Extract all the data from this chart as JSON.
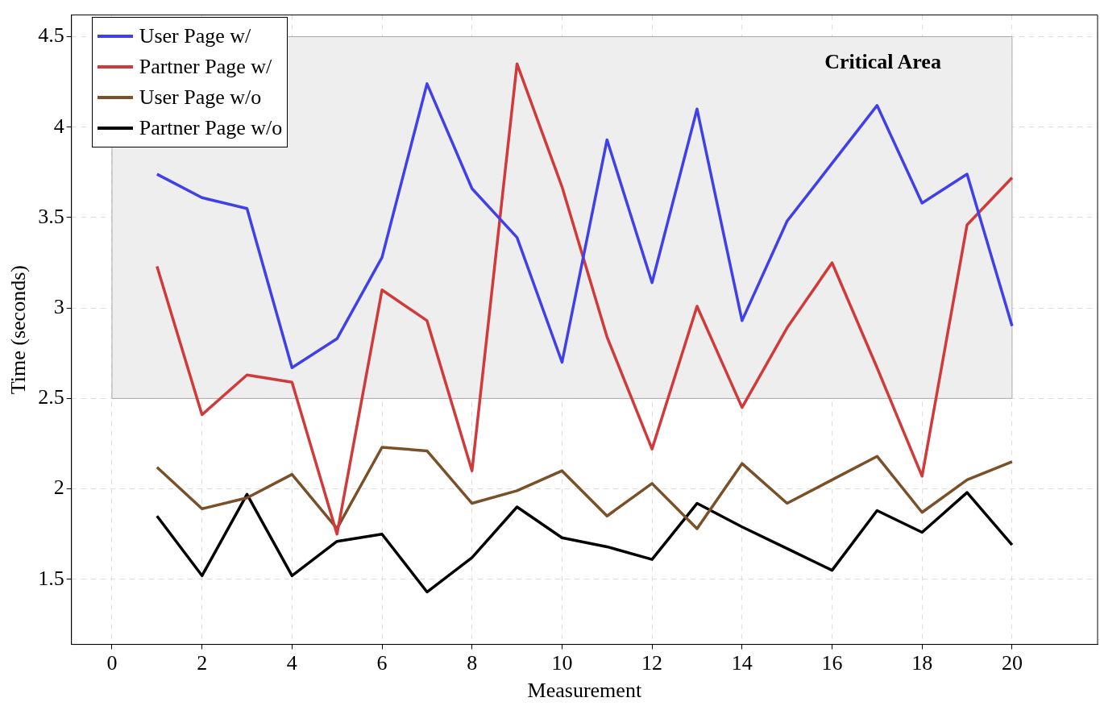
{
  "chart_data": {
    "type": "line",
    "xlabel": "Measurement",
    "ylabel": "Time (seconds)",
    "x": [
      1,
      2,
      3,
      4,
      5,
      6,
      7,
      8,
      9,
      10,
      11,
      12,
      13,
      14,
      15,
      16,
      17,
      18,
      19,
      20
    ],
    "xlim": [
      -0.9,
      21.9
    ],
    "xticks": [
      0,
      2,
      4,
      6,
      8,
      10,
      12,
      14,
      16,
      18,
      20
    ],
    "ylim": [
      1.14,
      4.62
    ],
    "yticks": [
      1.5,
      2,
      2.5,
      3,
      3.5,
      4,
      4.5
    ],
    "grid": true,
    "legend": "top left",
    "line_style": "solid",
    "bands": [
      {
        "axis": "y",
        "from": 2.5,
        "to": 4.5,
        "label": "Critical Area",
        "color": "#eeeeee"
      }
    ],
    "series": [
      {
        "name": "User Page w/",
        "color": "#4040e8",
        "values": [
          3.74,
          3.61,
          3.55,
          2.67,
          2.83,
          3.28,
          4.24,
          3.66,
          3.39,
          2.7,
          3.93,
          3.14,
          4.1,
          2.93,
          3.48,
          3.8,
          4.12,
          3.58,
          3.74,
          2.9
        ]
      },
      {
        "name": "Partner Page w/",
        "color": "#d03a3a",
        "values": [
          3.23,
          2.41,
          2.63,
          2.59,
          1.75,
          3.1,
          2.93,
          2.1,
          4.35,
          3.67,
          2.84,
          2.22,
          3.01,
          2.45,
          2.89,
          3.25,
          2.67,
          2.07,
          3.46,
          3.72
        ]
      },
      {
        "name": "User Page w/o",
        "color": "#7a5028",
        "values": [
          2.12,
          1.89,
          1.95,
          2.08,
          1.78,
          2.23,
          2.21,
          1.92,
          1.99,
          2.1,
          1.85,
          2.03,
          1.78,
          2.14,
          1.92,
          2.05,
          2.18,
          1.87,
          2.05,
          2.15
        ]
      },
      {
        "name": "Partner Page w/o",
        "color": "#000000",
        "values": [
          1.85,
          1.52,
          1.97,
          1.52,
          1.71,
          1.75,
          1.43,
          1.62,
          1.9,
          1.73,
          1.68,
          1.61,
          1.92,
          1.79,
          1.67,
          1.55,
          1.88,
          1.76,
          1.98,
          1.69
        ]
      }
    ]
  }
}
